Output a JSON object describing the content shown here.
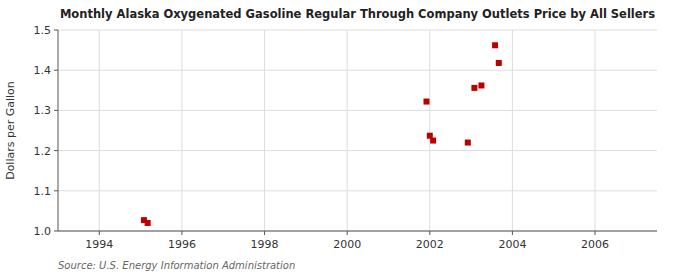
{
  "chart_data": {
    "type": "scatter",
    "title": "Monthly Alaska Oxygenated Gasoline Regular Through Company Outlets Price by All Sellers",
    "y_label": "Dollars per Gallon",
    "annotations": [
      "Source: U.S. Energy Information Administration"
    ],
    "color": "#bb0000",
    "marker": "square",
    "grid": true,
    "xlim": [
      1993.0,
      2007.5
    ],
    "ylim": [
      1.0,
      1.5
    ],
    "xticks": [
      1994,
      1996,
      1998,
      2000,
      2002,
      2004,
      2006
    ],
    "yticks": [
      {
        "value": 1.0,
        "label": "1.0"
      },
      1.1,
      1.2,
      1.3,
      1.4,
      1.5
    ],
    "x": [
      1995.08,
      1995.17,
      2001.92,
      2002.0,
      2002.08,
      2002.92,
      2003.08,
      2003.25,
      2003.58,
      2003.67
    ],
    "values": [
      1.027,
      1.02,
      1.322,
      1.237,
      1.225,
      1.22,
      1.356,
      1.362,
      1.462,
      1.418
    ]
  }
}
